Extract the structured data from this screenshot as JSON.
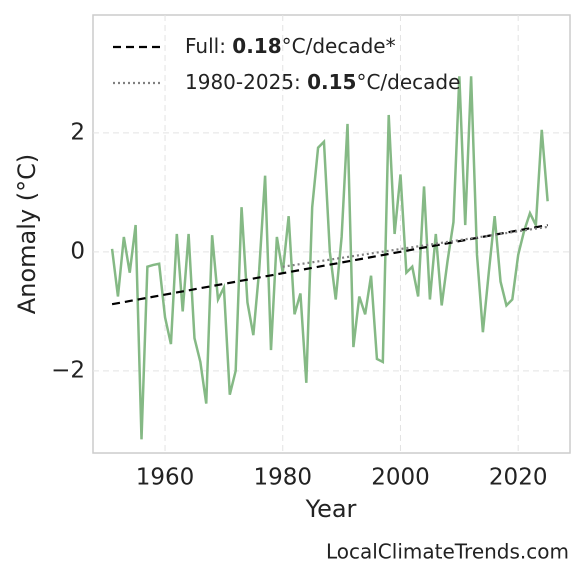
{
  "chart_data": {
    "type": "line",
    "xlabel": "Year",
    "ylabel": "Anomaly (°C)",
    "source": "LocalClimateTrends.com",
    "xlim": [
      1947.76,
      2028.8
    ],
    "ylim": [
      -3.38,
      3.98
    ],
    "xticks": [
      1960,
      1980,
      2000,
      2020
    ],
    "yticks": [
      {
        "value": -2,
        "label": "−2"
      },
      0,
      2
    ],
    "grid": true,
    "legend": "upper left",
    "series": [
      {
        "color": "#85b985",
        "style": "solid",
        "x": [
          1951,
          1952,
          1953,
          1954,
          1955,
          1956,
          1957,
          1958,
          1959,
          1960,
          1961,
          1962,
          1963,
          1964,
          1965,
          1966,
          1967,
          1968,
          1969,
          1970,
          1971,
          1972,
          1973,
          1974,
          1975,
          1976,
          1977,
          1978,
          1979,
          1980,
          1981,
          1982,
          1983,
          1984,
          1985,
          1986,
          1987,
          1988,
          1989,
          1990,
          1991,
          1992,
          1993,
          1994,
          1995,
          1996,
          1997,
          1998,
          1999,
          2000,
          2001,
          2002,
          2003,
          2004,
          2005,
          2006,
          2007,
          2008,
          2009,
          2010,
          2011,
          2012,
          2013,
          2014,
          2015,
          2016,
          2017,
          2018,
          2019,
          2020,
          2021,
          2022,
          2023,
          2024,
          2025
        ],
        "values": [
          0.05,
          -0.75,
          0.25,
          -0.35,
          0.45,
          -3.15,
          -0.25,
          -0.22,
          -0.2,
          -1.1,
          -1.55,
          0.3,
          -1.0,
          0.3,
          -1.45,
          -1.85,
          -2.55,
          0.28,
          -0.8,
          -0.6,
          -2.4,
          -2.0,
          0.75,
          -0.85,
          -1.4,
          -0.3,
          1.28,
          -1.65,
          0.25,
          -0.35,
          0.6,
          -1.05,
          -0.7,
          -2.2,
          0.75,
          1.75,
          1.85,
          0.0,
          -0.8,
          0.25,
          2.15,
          -1.6,
          -0.75,
          -1.05,
          -0.4,
          -1.8,
          -1.85,
          2.3,
          0.3,
          1.3,
          -0.35,
          -0.25,
          -0.75,
          1.1,
          -0.8,
          0.3,
          -0.9,
          -0.15,
          0.5,
          2.95,
          0.45,
          2.95,
          -0.05,
          -1.35,
          -0.35,
          0.6,
          -0.5,
          -0.9,
          -0.8,
          -0.05,
          0.35,
          0.65,
          0.45,
          2.05,
          0.85
        ]
      },
      {
        "name": [
          "Full: ",
          "0.18",
          "°C/decade*"
        ],
        "color": "#000000",
        "style": "dashed",
        "x": [
          1951,
          2025
        ],
        "values": [
          -0.88,
          0.45
        ]
      },
      {
        "name": [
          "1980-2025: ",
          "0.15",
          "°C/decade"
        ],
        "color": "#808080",
        "style": "dotted",
        "x": [
          1980,
          2025
        ],
        "values": [
          -0.25,
          0.42
        ]
      }
    ]
  }
}
